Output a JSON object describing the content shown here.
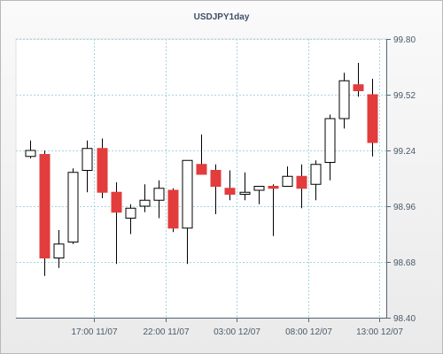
{
  "chart_data": {
    "type": "candlestick",
    "title": "USDJPY1day",
    "y_axis_position": "right",
    "ylim": [
      98.4,
      99.8
    ],
    "y_ticks": [
      98.4,
      98.68,
      98.96,
      99.24,
      99.52,
      99.8
    ],
    "y_tick_labels": [
      "98.40",
      "98.68",
      "98.96",
      "99.24",
      "99.52",
      "99.80"
    ],
    "x_tick_labels": [
      "17:00 11/07",
      "22:00 11/07",
      "03:00 12/07",
      "08:00 12/07",
      "13:00 12/07"
    ],
    "x_tick_after_candle": [
      4.5,
      9.5,
      14.5,
      19.5,
      24.5
    ],
    "grid": true,
    "colors": {
      "up": "#ffffff",
      "down": "#e23c3c",
      "wick": "#000000",
      "grid": "#a8d4e0",
      "axis": "#5a6a7a",
      "title": "#3c5068"
    },
    "candles": [
      {
        "open": 99.21,
        "high": 99.29,
        "low": 99.2,
        "close": 99.24
      },
      {
        "open": 99.22,
        "high": 99.24,
        "low": 98.61,
        "close": 98.7
      },
      {
        "open": 98.7,
        "high": 98.84,
        "low": 98.65,
        "close": 98.77
      },
      {
        "open": 98.78,
        "high": 99.15,
        "low": 98.77,
        "close": 99.13
      },
      {
        "open": 99.14,
        "high": 99.29,
        "low": 99.03,
        "close": 99.25
      },
      {
        "open": 99.25,
        "high": 99.3,
        "low": 99.0,
        "close": 99.03
      },
      {
        "open": 99.03,
        "high": 99.08,
        "low": 98.67,
        "close": 98.93
      },
      {
        "open": 98.9,
        "high": 98.97,
        "low": 98.82,
        "close": 98.95
      },
      {
        "open": 98.96,
        "high": 99.07,
        "low": 98.93,
        "close": 98.99
      },
      {
        "open": 98.99,
        "high": 99.09,
        "low": 98.9,
        "close": 99.05
      },
      {
        "open": 99.04,
        "high": 99.05,
        "low": 98.83,
        "close": 98.85
      },
      {
        "open": 98.85,
        "high": 99.19,
        "low": 98.67,
        "close": 99.19
      },
      {
        "open": 99.17,
        "high": 99.32,
        "low": 99.12,
        "close": 99.12
      },
      {
        "open": 99.14,
        "high": 99.17,
        "low": 98.92,
        "close": 99.06
      },
      {
        "open": 99.05,
        "high": 99.14,
        "low": 98.99,
        "close": 99.02
      },
      {
        "open": 99.02,
        "high": 99.13,
        "low": 98.99,
        "close": 99.03
      },
      {
        "open": 99.04,
        "high": 99.06,
        "low": 98.97,
        "close": 99.06
      },
      {
        "open": 99.06,
        "high": 99.07,
        "low": 98.81,
        "close": 99.05
      },
      {
        "open": 99.06,
        "high": 99.16,
        "low": 99.06,
        "close": 99.11
      },
      {
        "open": 99.11,
        "high": 99.17,
        "low": 98.95,
        "close": 99.05
      },
      {
        "open": 99.07,
        "high": 99.19,
        "low": 98.99,
        "close": 99.17
      },
      {
        "open": 99.18,
        "high": 99.42,
        "low": 99.09,
        "close": 99.4
      },
      {
        "open": 99.4,
        "high": 99.63,
        "low": 99.35,
        "close": 99.59
      },
      {
        "open": 99.57,
        "high": 99.68,
        "low": 99.51,
        "close": 99.54
      },
      {
        "open": 99.52,
        "high": 99.6,
        "low": 99.21,
        "close": 99.28
      }
    ]
  }
}
